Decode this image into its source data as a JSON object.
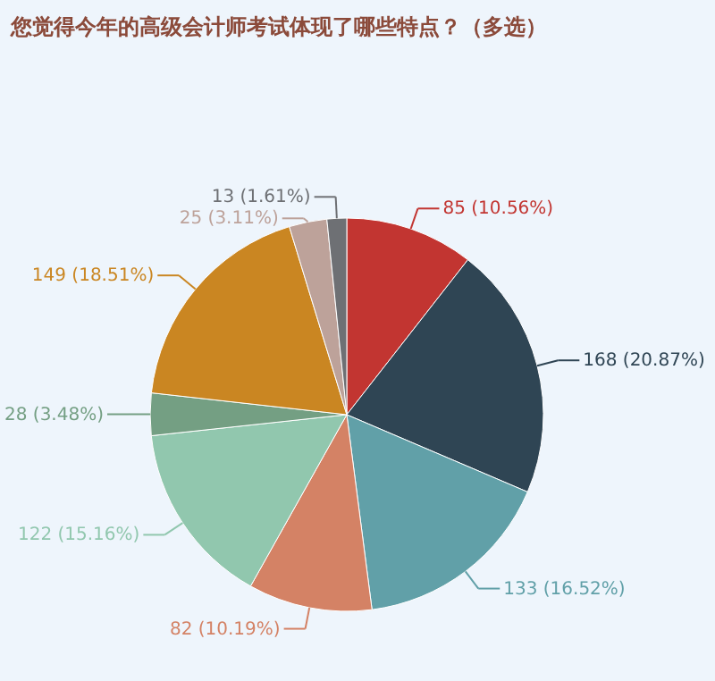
{
  "chart_data": {
    "type": "pie",
    "title": "您觉得今年的高级会计师考试体现了哪些特点？（多选）",
    "categories": [
      null,
      null,
      null,
      null,
      null,
      null,
      null,
      null,
      null
    ],
    "values": [
      85,
      168,
      133,
      82,
      122,
      28,
      149,
      25,
      13
    ],
    "colors": [
      "#c23531",
      "#2f4554",
      "#61a0a8",
      "#d48265",
      "#91c7ae",
      "#749f83",
      "#ca8622",
      "#bda29a",
      "#6e7074"
    ],
    "value_labels": [
      "85 (10.56%)",
      "168 (20.87%)",
      "133 (16.52%)",
      "82 (10.19%)",
      "122 (15.16%)",
      "28 (3.48%)",
      "149 (18.51%)",
      "25 (3.11%)",
      "13 (1.61%)"
    ],
    "legend": false
  }
}
